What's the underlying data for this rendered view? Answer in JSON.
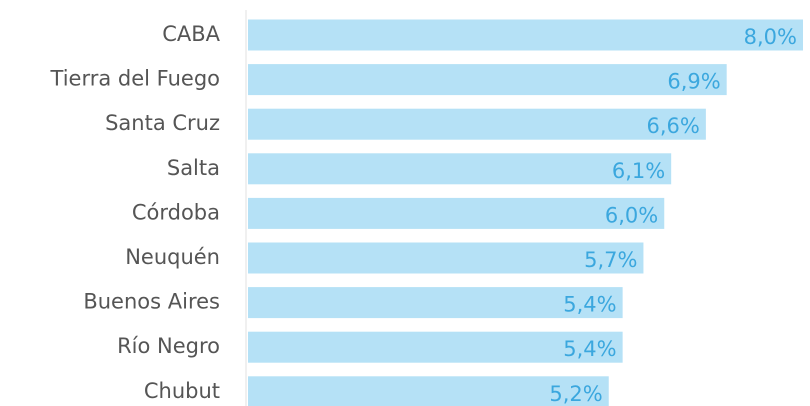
{
  "chart_data": {
    "type": "barh",
    "categories": [
      "CABA",
      "Tierra del Fuego",
      "Santa Cruz",
      "Salta",
      "Córdoba",
      "Neuquén",
      "Buenos Aires",
      "Río Negro",
      "Chubut"
    ],
    "values": [
      8.0,
      6.9,
      6.6,
      6.1,
      6.0,
      5.7,
      5.4,
      5.4,
      5.2
    ],
    "value_labels": [
      "8,0%",
      "6,9%",
      "6,6%",
      "6,1%",
      "6,0%",
      "5,7%",
      "5,4%",
      "5,4%",
      "5,2%"
    ],
    "color": "#b5e1f6",
    "xlim": [
      0,
      8
    ]
  }
}
